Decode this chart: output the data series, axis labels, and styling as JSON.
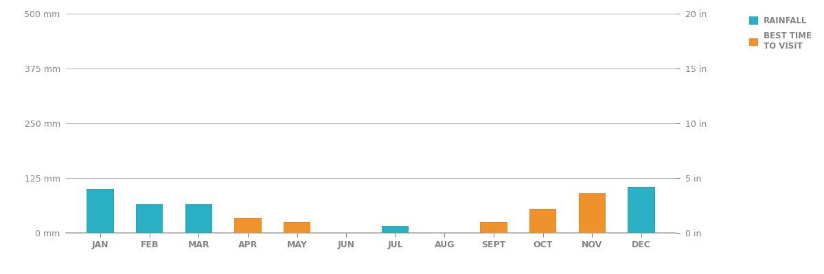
{
  "months": [
    "JAN",
    "FEB",
    "MAR",
    "APR",
    "MAY",
    "JUN",
    "JUL",
    "AUG",
    "SEPT",
    "OCT",
    "NOV",
    "DEC"
  ],
  "bar_values": [
    100,
    65,
    65,
    35,
    25,
    0,
    15,
    0,
    25,
    55,
    90,
    105
  ],
  "bar_colors": [
    "#2ab0c5",
    "#2ab0c5",
    "#2ab0c5",
    "#f0922b",
    "#f0922b",
    "#2ab0c5",
    "#2ab0c5",
    "#2ab0c5",
    "#f0922b",
    "#f0922b",
    "#f0922b",
    "#2ab0c5"
  ],
  "rainfall_color": "#2ab0c5",
  "best_time_color": "#f0922b",
  "axis_color": "#aaaaaa",
  "text_color": "#888888",
  "background_color": "#ffffff",
  "ylim_mm": [
    0,
    500
  ],
  "ylim_in": [
    0,
    20
  ],
  "yticks_mm": [
    0,
    125,
    250,
    375,
    500
  ],
  "yticks_in": [
    0,
    5,
    10,
    15,
    20
  ],
  "ytick_labels_mm": [
    "0 mm",
    "125 mm",
    "250 mm",
    "375 mm",
    "500 mm"
  ],
  "ytick_labels_in": [
    "0 in",
    "5 in",
    "10 in",
    "15 in",
    "20 in"
  ],
  "legend_rainfall": "RAINFALL",
  "legend_best_time": "BEST TIME\nTO VISIT",
  "bar_width": 0.55
}
